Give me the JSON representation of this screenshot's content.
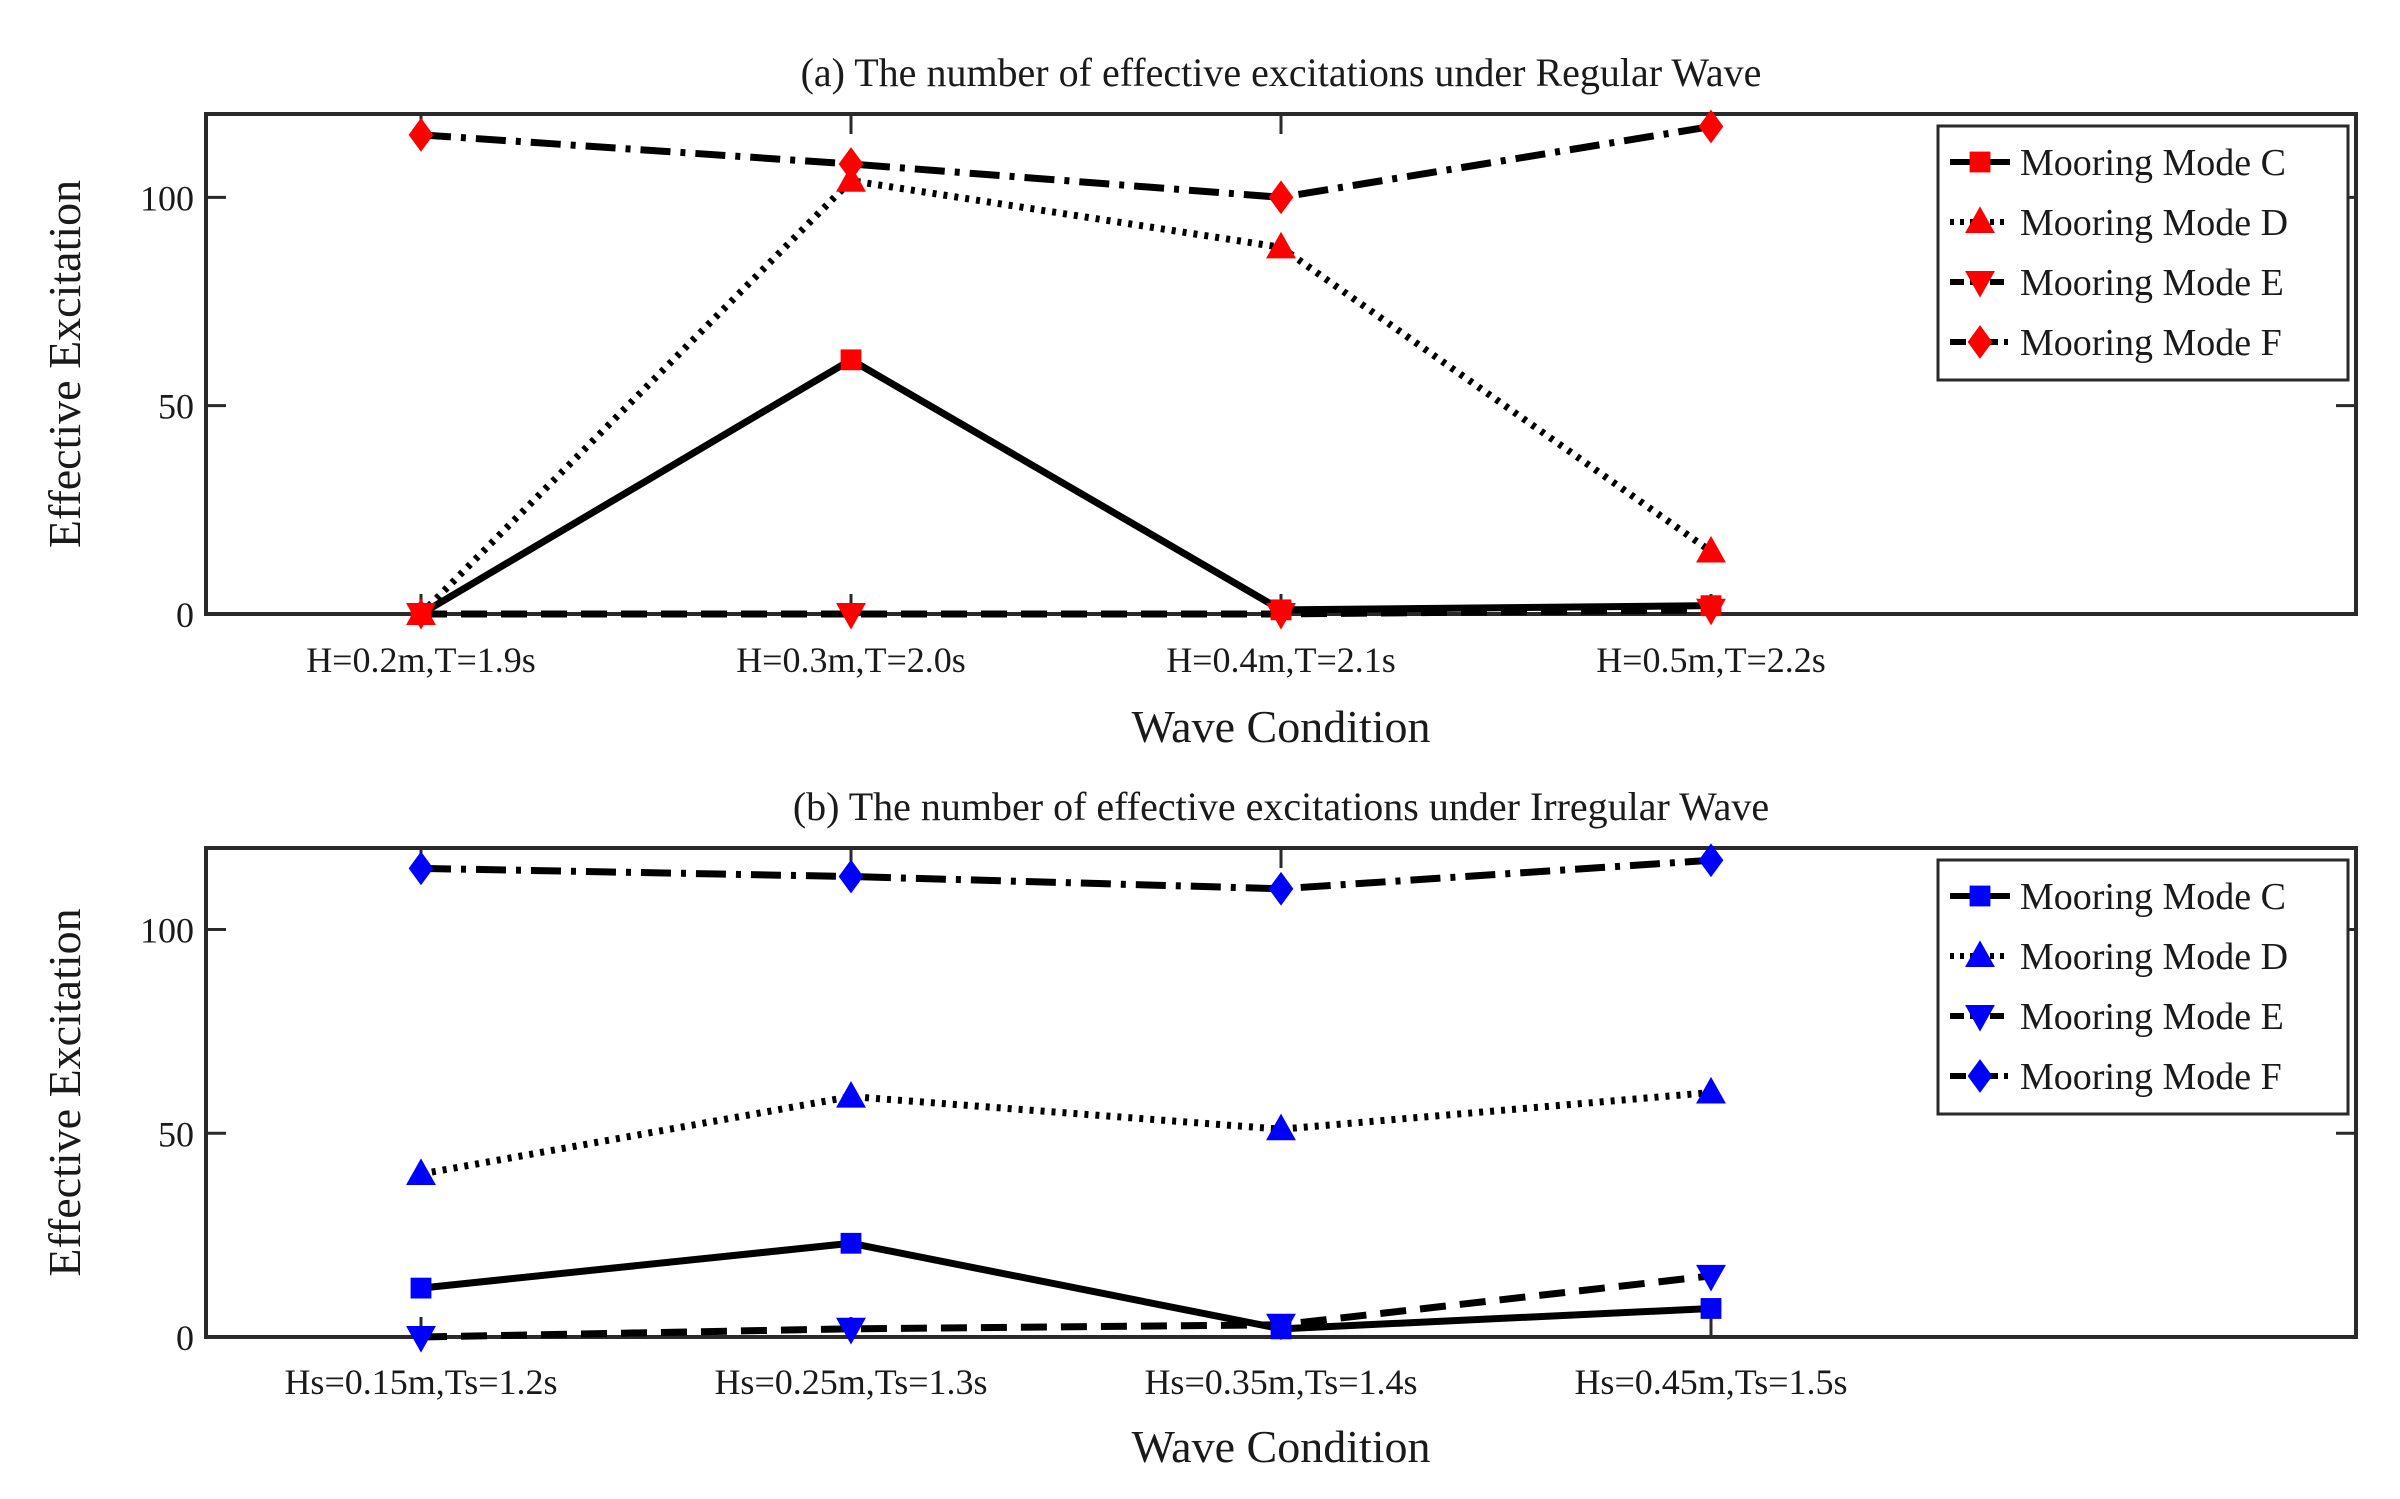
{
  "chart_data": [
    {
      "type": "line",
      "title": "(a) The number of effective excitations under Regular Wave",
      "xlabel": "Wave Condition",
      "ylabel": "Effective Excitation",
      "categories": [
        "H=0.2m,T=1.9s",
        "H=0.3m,T=2.0s",
        "H=0.4m,T=2.1s",
        "H=0.5m,T=2.2s"
      ],
      "xlim": [
        0.5,
        5.5
      ],
      "ylim": [
        0,
        120
      ],
      "yticks": [
        0,
        50,
        100
      ],
      "marker_color": "#ff0000",
      "line_color": "#000000",
      "legend_position": "top-right",
      "series": [
        {
          "name": "Mooring Mode C",
          "values": [
            0,
            61,
            1,
            2
          ],
          "marker": "square",
          "linestyle": "solid"
        },
        {
          "name": "Mooring Mode D",
          "values": [
            0,
            104,
            88,
            15
          ],
          "marker": "triangle-up",
          "linestyle": "dotted"
        },
        {
          "name": "Mooring Mode E",
          "values": [
            0,
            0,
            0,
            1
          ],
          "marker": "triangle-down",
          "linestyle": "dashed"
        },
        {
          "name": "Mooring Mode F",
          "values": [
            115,
            108,
            100,
            117
          ],
          "marker": "diamond",
          "linestyle": "dashdot"
        }
      ]
    },
    {
      "type": "line",
      "title": "(b) The number of effective excitations under Irregular Wave",
      "xlabel": "Wave Condition",
      "ylabel": "Effective Excitation",
      "categories": [
        "Hs=0.15m,Ts=1.2s",
        "Hs=0.25m,Ts=1.3s",
        "Hs=0.35m,Ts=1.4s",
        "Hs=0.45m,Ts=1.5s"
      ],
      "xlim": [
        0.5,
        5.5
      ],
      "ylim": [
        0,
        120
      ],
      "yticks": [
        0,
        50,
        100
      ],
      "marker_color": "#0000ff",
      "line_color": "#000000",
      "legend_position": "top-right",
      "series": [
        {
          "name": "Mooring Mode C",
          "values": [
            12,
            23,
            2,
            7
          ],
          "marker": "square",
          "linestyle": "solid"
        },
        {
          "name": "Mooring Mode D",
          "values": [
            40,
            59,
            51,
            60
          ],
          "marker": "triangle-up",
          "linestyle": "dotted"
        },
        {
          "name": "Mooring Mode E",
          "values": [
            0,
            2,
            3,
            15
          ],
          "marker": "triangle-down",
          "linestyle": "dashed"
        },
        {
          "name": "Mooring Mode F",
          "values": [
            115,
            113,
            110,
            117
          ],
          "marker": "diamond",
          "linestyle": "dashdot"
        }
      ]
    }
  ]
}
